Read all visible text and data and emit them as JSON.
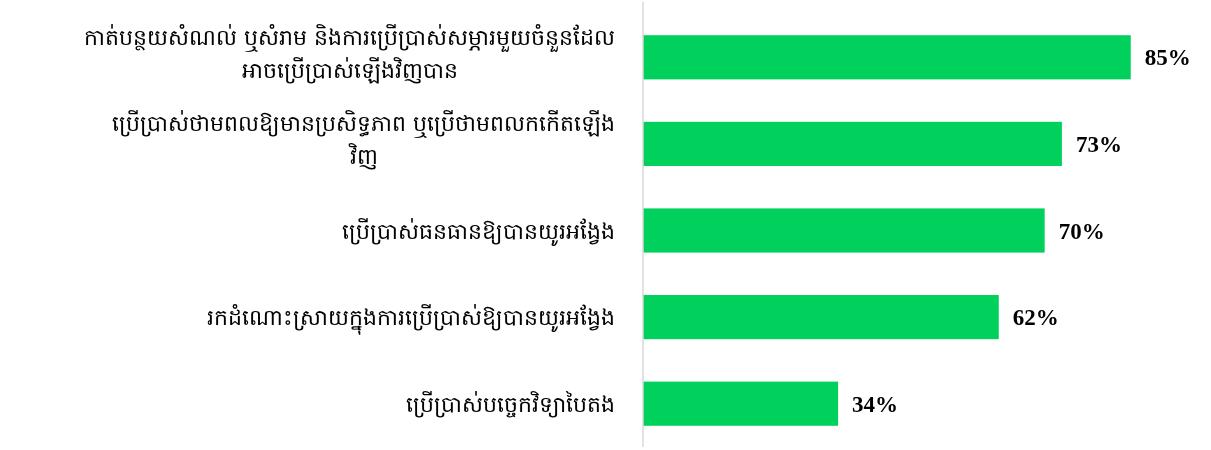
{
  "chart_data": {
    "type": "bar",
    "orientation": "horizontal",
    "categories": [
      "កាត់បន្ថយសំណល់ ឬសំរាម និងការប្រើប្រាស់សម្ភារមួយចំនួនដែល\nអាចប្រើប្រាស់ឡើងវិញបាន",
      "ប្រើប្រាស់ថាមពលឱ្យមានប្រសិទ្ធភាព ឬប្រើថាមពលកកើតឡើង\nវិញ",
      "ប្រើប្រាស់ធនធានឱ្យបានយូរអង្វែង",
      "រកដំណោះស្រាយក្នុងការប្រើប្រាស់ឱ្យបានយូរអង្វែង",
      "ប្រើប្រាស់បច្ចេកវិទ្យាបៃតង"
    ],
    "values": [
      85,
      73,
      70,
      62,
      34
    ],
    "value_labels": [
      "85%",
      "73%",
      "70%",
      "62%",
      "34%"
    ],
    "color": "#00d05c"
  }
}
